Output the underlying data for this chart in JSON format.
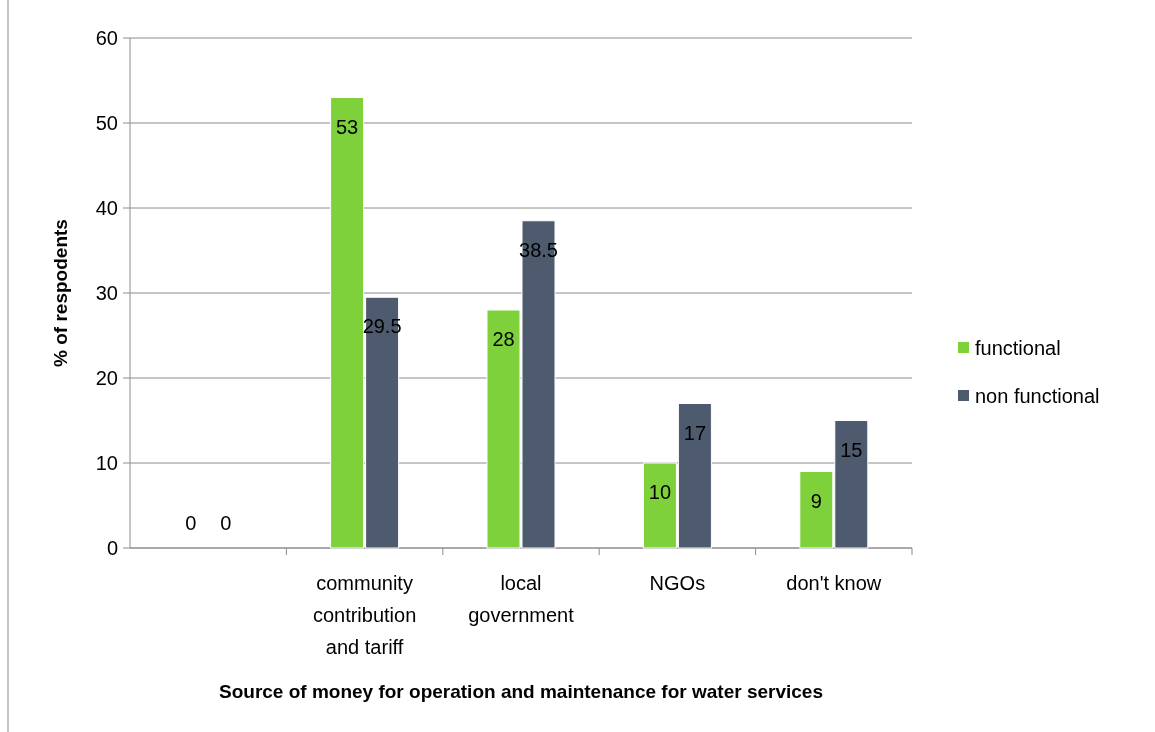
{
  "chart_data": {
    "type": "bar",
    "xlabel": "Source of money for operation and maintenance for water services",
    "ylabel": "% of respodents",
    "categories": [
      null,
      "community contribution and tariff",
      "local government",
      "NGOs",
      "don't know"
    ],
    "series": [
      {
        "name": "functional",
        "color": "#7fd13b",
        "values": [
          0,
          53,
          28,
          10,
          9
        ]
      },
      {
        "name": "non functional",
        "color": "#4e5b6f",
        "values": [
          0,
          29.5,
          38.5,
          17,
          15
        ]
      }
    ],
    "ylim": [
      0,
      60
    ],
    "yticks": [
      0,
      10,
      20,
      30,
      40,
      50,
      60
    ],
    "grid": "y",
    "legend": "right",
    "data_labels": true
  }
}
